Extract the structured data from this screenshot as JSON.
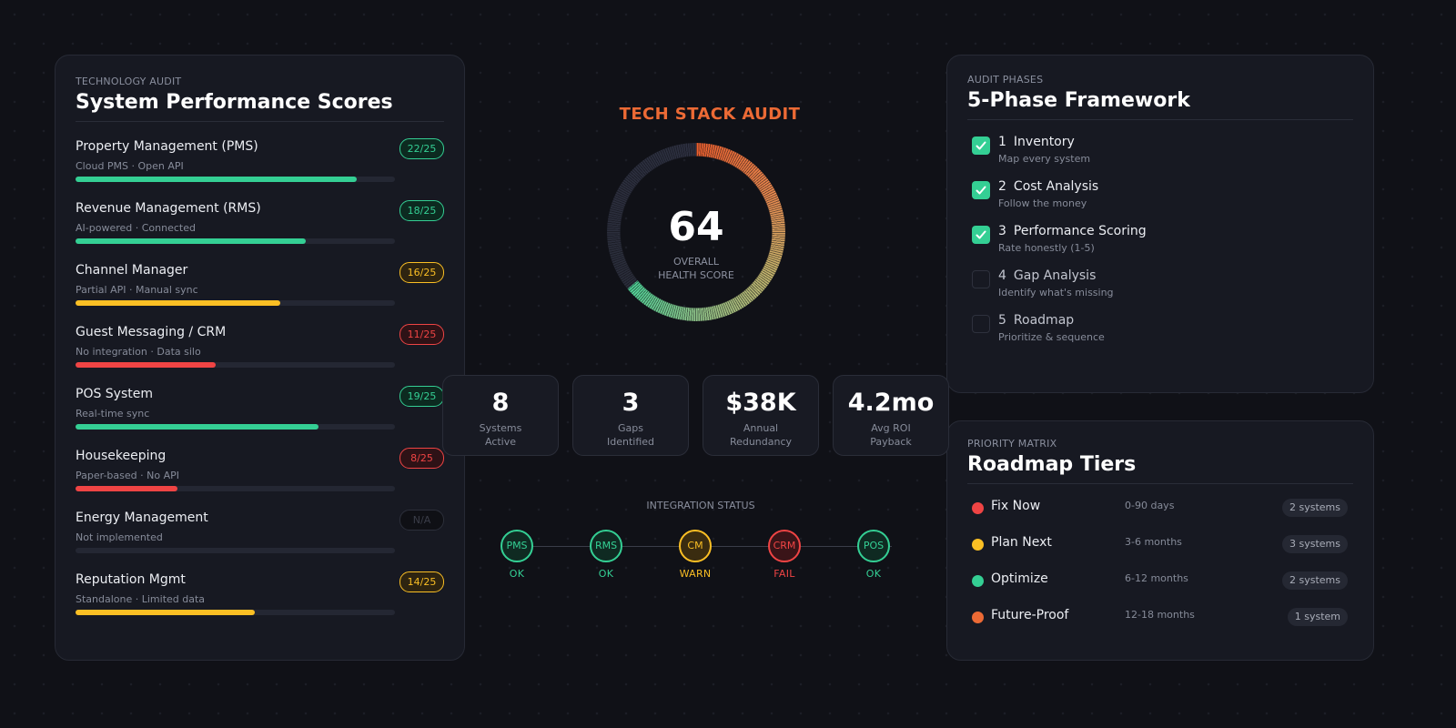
{
  "colors": {
    "green": "#34cf94",
    "yellow": "#fbbf24",
    "red": "#ef4444",
    "orange": "#ec6a35",
    "gray": "#4a4e5a"
  },
  "scores_panel": {
    "eyebrow": "TECHNOLOGY AUDIT",
    "title": "System Performance Scores",
    "items": [
      {
        "name": "Property Management (PMS)",
        "sub": "Cloud PMS · Open API",
        "score": "22/25",
        "pct": 88,
        "status": "green"
      },
      {
        "name": "Revenue Management (RMS)",
        "sub": "AI-powered · Connected",
        "score": "18/25",
        "pct": 72,
        "status": "green"
      },
      {
        "name": "Channel Manager",
        "sub": "Partial API · Manual sync",
        "score": "16/25",
        "pct": 64,
        "status": "yellow"
      },
      {
        "name": "Guest Messaging / CRM",
        "sub": "No integration · Data silo",
        "score": "11/25",
        "pct": 44,
        "status": "red"
      },
      {
        "name": "POS System",
        "sub": "Real-time sync",
        "score": "19/25",
        "pct": 76,
        "status": "green"
      },
      {
        "name": "Housekeeping",
        "sub": "Paper-based · No API",
        "score": "8/25",
        "pct": 32,
        "status": "red"
      },
      {
        "name": "Energy Management",
        "sub": "Not implemented",
        "score": "N/A",
        "pct": 0,
        "status": "gray"
      },
      {
        "name": "Reputation Mgmt",
        "sub": "Standalone · Limited data",
        "score": "14/25",
        "pct": 56,
        "status": "yellow"
      }
    ]
  },
  "center": {
    "title": "TECH STACK AUDIT",
    "health_score": "64",
    "health_pct": 64,
    "health_label_line1": "OVERALL",
    "health_label_line2": "HEALTH SCORE",
    "stats": [
      {
        "value": "8",
        "label_line1": "Systems",
        "label_line2": "Active"
      },
      {
        "value": "3",
        "label_line1": "Gaps",
        "label_line2": "Identified"
      },
      {
        "value": "$38K",
        "label_line1": "Annual",
        "label_line2": "Redundancy"
      },
      {
        "value": "4.2mo",
        "label_line1": "Avg ROI",
        "label_line2": "Payback"
      }
    ],
    "integration": {
      "title": "INTEGRATION STATUS",
      "nodes": [
        {
          "label": "PMS",
          "status": "OK",
          "color": "green"
        },
        {
          "label": "RMS",
          "status": "OK",
          "color": "green"
        },
        {
          "label": "CM",
          "status": "WARN",
          "color": "yellow"
        },
        {
          "label": "CRM",
          "status": "FAIL",
          "color": "red"
        },
        {
          "label": "POS",
          "status": "OK",
          "color": "green"
        }
      ]
    }
  },
  "phases_panel": {
    "eyebrow": "AUDIT PHASES",
    "title": "5-Phase Framework",
    "phases": [
      {
        "num": "1",
        "title": "Inventory",
        "sub": "Map every system",
        "done": true
      },
      {
        "num": "2",
        "title": "Cost Analysis",
        "sub": "Follow the money",
        "done": true
      },
      {
        "num": "3",
        "title": "Performance Scoring",
        "sub": "Rate honestly (1-5)",
        "done": true
      },
      {
        "num": "4",
        "title": "Gap Analysis",
        "sub": "Identify what's missing",
        "done": false
      },
      {
        "num": "5",
        "title": "Roadmap",
        "sub": "Prioritize & sequence",
        "done": false
      }
    ]
  },
  "roadmap_panel": {
    "eyebrow": "PRIORITY MATRIX",
    "title": "Roadmap Tiers",
    "tiers": [
      {
        "name": "Fix Now",
        "range": "0-90 days",
        "count": "2 systems",
        "color": "red"
      },
      {
        "name": "Plan Next",
        "range": "3-6 months",
        "count": "3 systems",
        "color": "yellow"
      },
      {
        "name": "Optimize",
        "range": "6-12 months",
        "count": "2 systems",
        "color": "green"
      },
      {
        "name": "Future-Proof",
        "range": "12-18 months",
        "count": "1 system",
        "color": "orange"
      }
    ]
  }
}
